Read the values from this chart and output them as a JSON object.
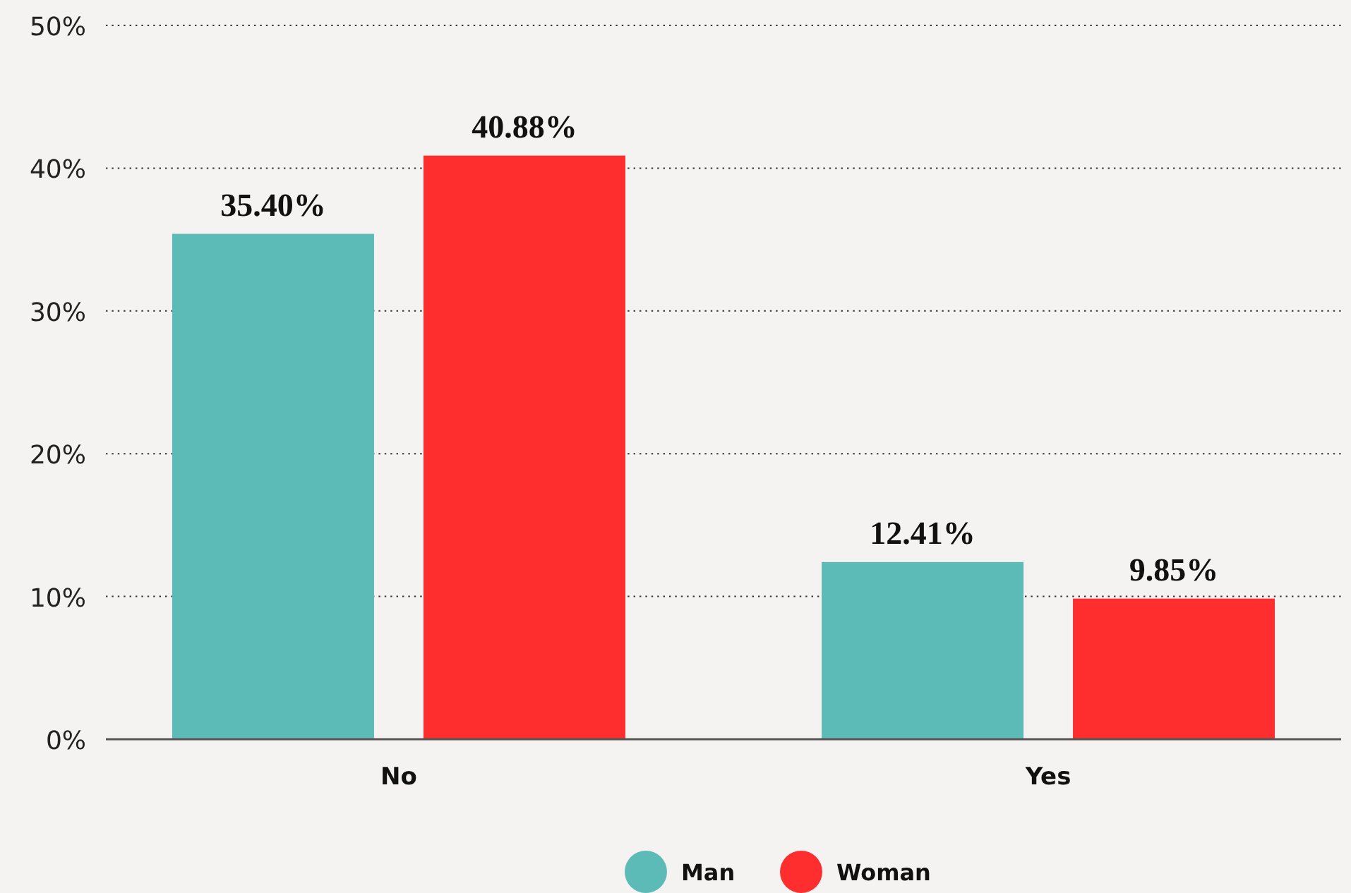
{
  "chart_data": {
    "type": "bar",
    "categories": [
      "No",
      "Yes"
    ],
    "series": [
      {
        "name": "Man",
        "color": "#5dbbb7",
        "values": [
          35.4,
          12.41
        ],
        "value_labels": [
          "35.40%",
          "12.41%"
        ]
      },
      {
        "name": "Woman",
        "color": "#ff2e2e",
        "values": [
          40.88,
          9.85
        ],
        "value_labels": [
          "40.88%",
          "9.85%"
        ]
      }
    ],
    "ylim": [
      0,
      50
    ],
    "yticks": [
      {
        "value": 0,
        "label": "0%"
      },
      {
        "value": 10,
        "label": "10%"
      },
      {
        "value": 20,
        "label": "20%"
      },
      {
        "value": 30,
        "label": "30%"
      },
      {
        "value": 40,
        "label": "40%"
      },
      {
        "value": 50,
        "label": "50%"
      }
    ],
    "grid": "y",
    "legend": "bottom"
  }
}
